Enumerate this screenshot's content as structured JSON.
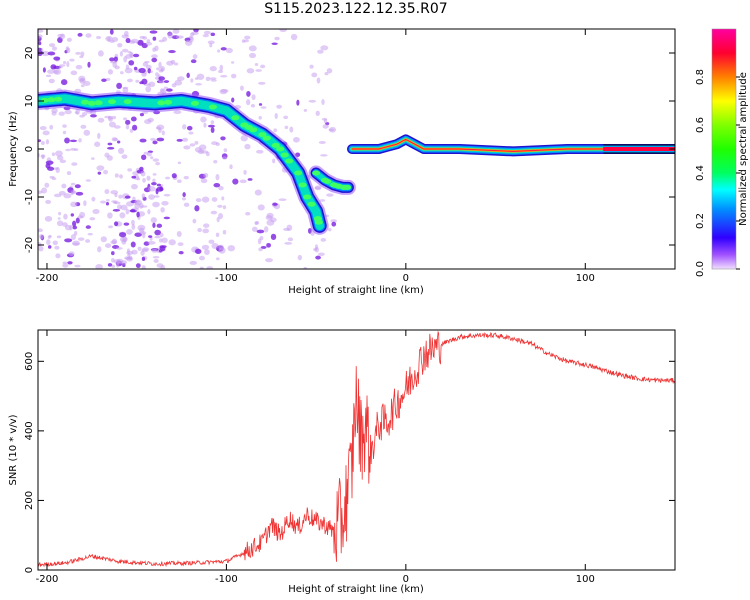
{
  "title": "S115.2023.122.12.35.R07",
  "chart_data": [
    {
      "type": "heatmap",
      "name": "spectrogram",
      "xlabel": "Height of straight line (km)",
      "ylabel": "Frequency (Hz)",
      "xlim": [
        -205,
        150
      ],
      "ylim": [
        -25,
        25
      ],
      "xticks": [
        -200,
        -100,
        0,
        100
      ],
      "yticks": [
        -20,
        -10,
        0,
        10,
        20
      ],
      "colorbar": {
        "label": "Normalized spectral amplitude",
        "range": [
          0,
          1
        ],
        "ticks": [
          "0.0",
          "0.2",
          "0.4",
          "0.6",
          "0.8"
        ],
        "colormap": "gist_ncar"
      },
      "ridge": {
        "x": [
          -205,
          -190,
          -175,
          -160,
          -140,
          -125,
          -110,
          -100,
          -90,
          -80,
          -70,
          -60,
          -55,
          -50,
          -48
        ],
        "y": [
          10,
          10.5,
          9.5,
          10,
          9.5,
          10,
          9,
          8,
          5,
          3,
          0,
          -5,
          -10,
          -13,
          -16
        ]
      },
      "ridge2": {
        "x": [
          -50,
          -45,
          -40,
          -35,
          -32
        ],
        "y": [
          -5,
          -6.5,
          -7.5,
          -8,
          -8
        ]
      },
      "ridge3": {
        "x": [
          -30,
          -25,
          -15,
          -10,
          -5,
          0,
          5,
          10,
          30,
          60,
          90,
          110,
          150
        ],
        "y": [
          0,
          0,
          0,
          0.5,
          1,
          2,
          1,
          0,
          0,
          -0.5,
          0,
          0,
          0
        ]
      }
    },
    {
      "type": "line",
      "name": "snr",
      "xlabel": "Height of straight line (km)",
      "ylabel": "SNR (10 * v/v)",
      "xlim": [
        -205,
        150
      ],
      "ylim": [
        0,
        690
      ],
      "xticks": [
        -200,
        -100,
        0,
        100
      ],
      "yticks": [
        0,
        200,
        400,
        600
      ],
      "color": "#ee3333",
      "series": [
        {
          "x": [
            -205,
            -190,
            -175,
            -160,
            -140,
            -120,
            -100,
            -90,
            -80,
            -75,
            -70,
            -65,
            -60,
            -55,
            -50,
            -45,
            -40,
            -35,
            -30,
            -28,
            -25,
            -22,
            -20,
            -15,
            -10,
            -5,
            0,
            10,
            20,
            30,
            40,
            50,
            60,
            70,
            80,
            90,
            100,
            110,
            120,
            130,
            140,
            150
          ],
          "values": [
            15,
            20,
            40,
            25,
            18,
            20,
            25,
            50,
            80,
            130,
            100,
            150,
            120,
            160,
            140,
            130,
            110,
            150,
            300,
            500,
            380,
            420,
            330,
            420,
            430,
            480,
            520,
            620,
            650,
            670,
            675,
            675,
            665,
            650,
            620,
            600,
            590,
            575,
            560,
            550,
            545,
            545
          ]
        }
      ]
    }
  ]
}
